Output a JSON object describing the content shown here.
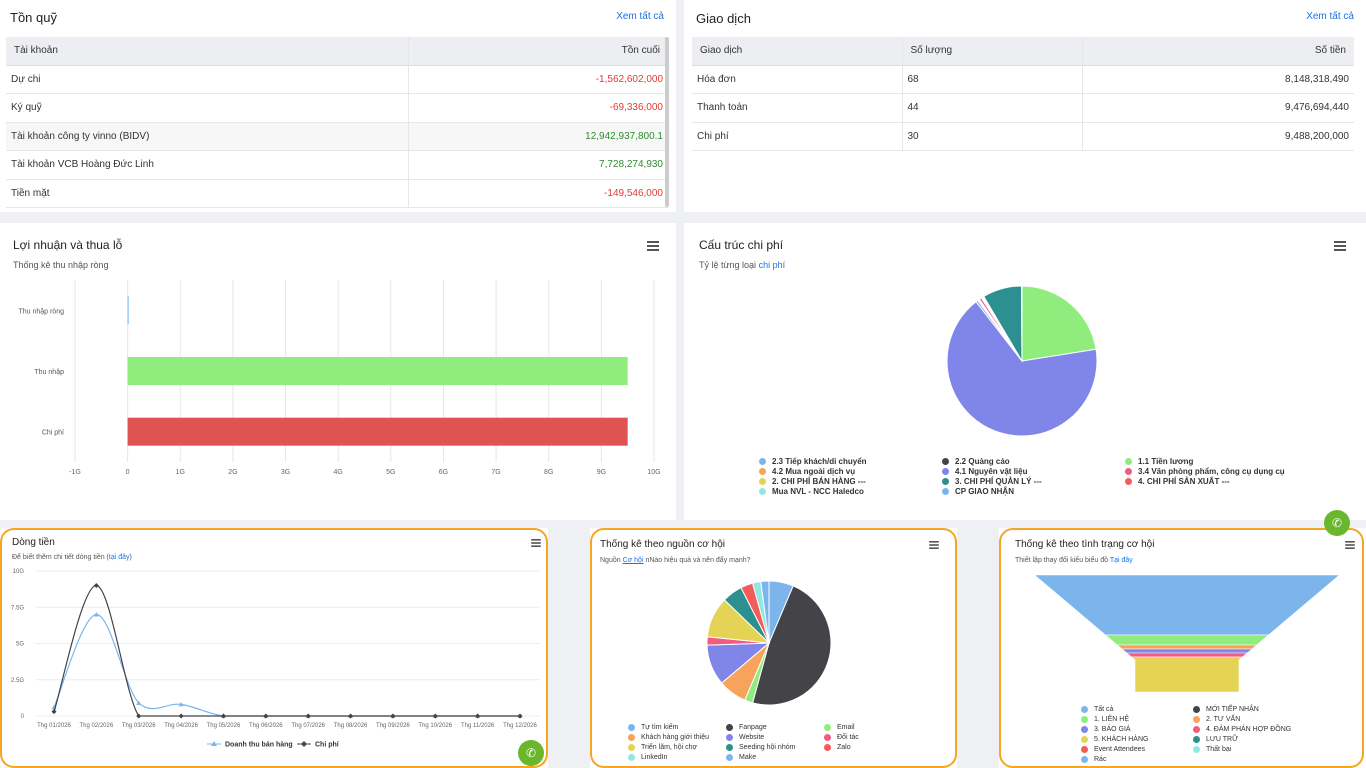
{
  "ton_quy": {
    "title": "Tồn quỹ",
    "see_all": "Xem tất cả",
    "headers": [
      "Tài khoản",
      "Tồn cuối"
    ],
    "rows": [
      {
        "name": "Dự chi",
        "value": "-1,562,602,000"
      },
      {
        "name": "Ký quỹ",
        "value": "-69,336,000"
      },
      {
        "name": "Tài khoản công ty vinno (BIDV)",
        "value": "12,942,937,800.1"
      },
      {
        "name": "Tài khoản VCB Hoàng Đức Linh",
        "value": "7,728,274,930"
      },
      {
        "name": "Tiền mặt",
        "value": "-149,546,000"
      }
    ]
  },
  "giao_dich": {
    "title": "Giao dịch",
    "see_all": "Xem tất cả",
    "headers": [
      "Giao dịch",
      "Số lượng",
      "Số tiền"
    ],
    "rows": [
      {
        "name": "Hóa đơn",
        "qty": "68",
        "amount": "8,148,318,490"
      },
      {
        "name": "Thanh toán",
        "qty": "44",
        "amount": "9,476,694,440"
      },
      {
        "name": "Chi phí",
        "qty": "30",
        "amount": "9,488,200,000"
      }
    ]
  },
  "loi_nhuan": {
    "title": "Lợi nhuận và thua lỗ",
    "subtitle": "Thống kê thu nhập ròng",
    "chart_data": {
      "type": "bar",
      "orientation": "horizontal",
      "categories": [
        "Thu nhập ròng",
        "Thu nhập",
        "Chi phí"
      ],
      "values": [
        0.01,
        9.5,
        9.5
      ],
      "colors": [
        "#7cb5ec",
        "#90ed7d",
        "#e05353"
      ],
      "ticks": [
        "-1G",
        "0",
        "1G",
        "2G",
        "3G",
        "4G",
        "5G",
        "6G",
        "7G",
        "8G",
        "9G",
        "10G"
      ],
      "xlim": [
        -1,
        10
      ],
      "grid": true
    }
  },
  "cau_truc": {
    "title": "Cấu trúc chi phí",
    "subtitle_a": "Tỷ lệ từng loại ",
    "subtitle_link": "chi phí",
    "chart_data": {
      "type": "pie",
      "slices": [
        {
          "label": "2.3 Tiếp khách/di chuyển",
          "value": 0.5,
          "color": "#7cb5ec"
        },
        {
          "label": "2.2 Quảng cáo",
          "value": 0.2,
          "color": "#434348"
        },
        {
          "label": "1.1 Tiền lương",
          "value": 22.5,
          "color": "#90ed7d"
        },
        {
          "label": "4.2 Mua ngoài dịch vụ",
          "value": 0.2,
          "color": "#f7a35c"
        },
        {
          "label": "4.1 Nguyên vật liệu",
          "value": 67.0,
          "color": "#8085e9"
        },
        {
          "label": "3.4 Văn phòng phẩm, công cụ dụng cụ",
          "value": 0.5,
          "color": "#f15c80"
        },
        {
          "label": "2. CHI PHÍ BÁN HÀNG ---",
          "value": 0.2,
          "color": "#e4d354"
        },
        {
          "label": "3. CHI PHÍ QUẢN LÝ ---",
          "value": 8.4,
          "color": "#2b908f"
        },
        {
          "label": "4. CHI PHÍ SẢN XUẤT ---",
          "value": 0.2,
          "color": "#f45b5b"
        },
        {
          "label": "Mua NVL - NCC Haledco",
          "value": 0.2,
          "color": "#91e8e1"
        },
        {
          "label": "CP GIAO NHẬN",
          "value": 0.1,
          "color": "#7cb5ec"
        }
      ]
    }
  },
  "dong_tien": {
    "title": "Dòng tiền",
    "subtitle_a": "Để biết thêm chi tiết dòng tiền (",
    "subtitle_link": "tại đây",
    "subtitle_b": ")",
    "chart_data": {
      "type": "line",
      "x": [
        "Thg 01/2026",
        "Thg 02/2026",
        "Thg 03/2026",
        "Thg 04/2026",
        "Thg 05/2026",
        "Thg 06/2026",
        "Thg 07/2026",
        "Thg 08/2026",
        "Thg 09/2026",
        "Thg 10/2026",
        "Thg 11/2026",
        "Thg 12/2026"
      ],
      "y_ticks": [
        "0",
        "2.5G",
        "5G",
        "7.5G",
        "10G"
      ],
      "ylim": [
        0,
        10
      ],
      "series": [
        {
          "name": "Doanh thu bán hàng",
          "color": "#7cb5ec",
          "values": [
            0.6,
            7.0,
            0.9,
            0.8,
            0,
            0,
            0,
            0,
            0,
            0,
            0,
            0
          ]
        },
        {
          "name": "Chi phí",
          "color": "#434348",
          "values": [
            0.3,
            9.0,
            0,
            0,
            0,
            0,
            0,
            0,
            0,
            0,
            0,
            0
          ]
        }
      ]
    }
  },
  "nguon_co_hoi": {
    "title": "Thống kê theo nguồn cơ hội",
    "subtitle_a": "Nguồn ",
    "subtitle_link": "Cơ hội",
    "subtitle_b": " nNào hiệu quả và nên đẩy mạnh?",
    "chart_data": {
      "type": "pie",
      "slices": [
        {
          "label": "Tự tìm kiếm",
          "value": 6,
          "color": "#7cb5ec"
        },
        {
          "label": "Fanpage",
          "value": 45,
          "color": "#434348"
        },
        {
          "label": "Email",
          "value": 2,
          "color": "#90ed7d"
        },
        {
          "label": "Khách hàng giới thiệu",
          "value": 7,
          "color": "#f7a35c"
        },
        {
          "label": "Website",
          "value": 10,
          "color": "#8085e9"
        },
        {
          "label": "Đối tác",
          "value": 2,
          "color": "#f15c80"
        },
        {
          "label": "Triển lãm, hội chợ",
          "value": 10,
          "color": "#e4d354"
        },
        {
          "label": "Seeding hội nhóm",
          "value": 5,
          "color": "#2b908f"
        },
        {
          "label": "Zalo",
          "value": 3,
          "color": "#f45b5b"
        },
        {
          "label": "LinkedIn",
          "value": 2,
          "color": "#91e8e1"
        },
        {
          "label": "Make",
          "value": 2,
          "color": "#7cb5ec"
        }
      ]
    }
  },
  "tinh_trang": {
    "title": "Thống kê theo tình trạng cơ hội",
    "subtitle_a": "Thiết lập thay đổi kiểu biểu đồ ",
    "subtitle_link": "Tại đây",
    "chart_data": {
      "type": "funnel",
      "stages": [
        {
          "label": "Tất cả",
          "value": 100,
          "color": "#7cb5ec"
        },
        {
          "label": "MỚI TIẾP NHẬN",
          "value": 0,
          "color": "#434348"
        },
        {
          "label": "1. LIÊN HỆ",
          "value": 10,
          "color": "#90ed7d"
        },
        {
          "label": "2. TƯ VẤN",
          "value": 4,
          "color": "#f7a35c"
        },
        {
          "label": "3. BÁO GIÁ",
          "value": 3,
          "color": "#8085e9"
        },
        {
          "label": "4. ĐÀM PHÁN HỢP ĐỒNG",
          "value": 3,
          "color": "#f15c80"
        },
        {
          "label": "5. KHÁCH HÀNG",
          "value": 30,
          "color": "#e4d354"
        },
        {
          "label": "LƯU TRỮ",
          "value": 0,
          "color": "#2b908f"
        },
        {
          "label": "Event Attendees",
          "value": 0,
          "color": "#f45b5b"
        },
        {
          "label": "Thất bại",
          "value": 0,
          "color": "#91e8e1"
        },
        {
          "label": "Rác",
          "value": 0,
          "color": "#7cb5ec"
        }
      ]
    }
  }
}
